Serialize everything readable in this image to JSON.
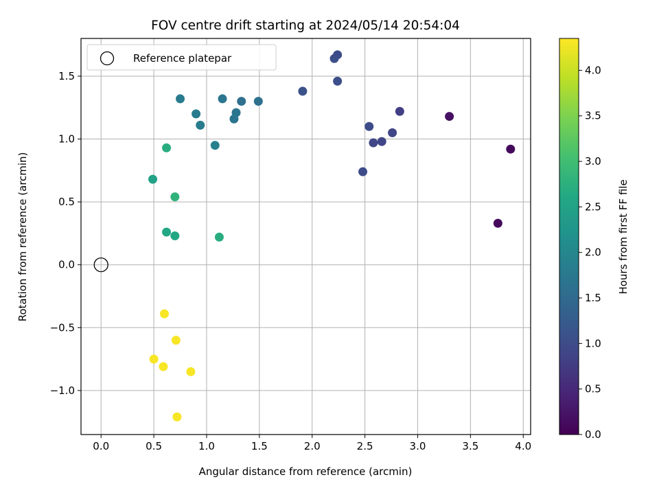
{
  "chart_data": {
    "type": "scatter",
    "title": "FOV centre drift starting at 2024/05/14 20:54:04",
    "xlabel": "Angular distance from reference (arcmin)",
    "ylabel": "Rotation from reference (arcmin)",
    "xlim": [
      -0.19,
      4.07
    ],
    "ylim": [
      -1.35,
      1.8
    ],
    "x_ticks": [
      0.0,
      0.5,
      1.0,
      1.5,
      2.0,
      2.5,
      3.0,
      3.5,
      4.0
    ],
    "y_ticks": [
      -1.0,
      -0.5,
      0.0,
      0.5,
      1.0,
      1.5
    ],
    "x_tick_labels": [
      "0.0",
      "0.5",
      "1.0",
      "1.5",
      "2.0",
      "2.5",
      "3.0",
      "3.5",
      "4.0"
    ],
    "y_tick_labels": [
      "−1.0",
      "−0.5",
      "0.0",
      "0.5",
      "1.0",
      "1.5"
    ],
    "grid": true,
    "legend": {
      "placement": "top-left",
      "entries": [
        "Reference platepar"
      ]
    },
    "reference_point": {
      "x": 0.0,
      "y": 0.0
    },
    "colorbar": {
      "label": "Hours from first FF file",
      "range": [
        0.0,
        4.35
      ],
      "ticks": [
        0.0,
        0.5,
        1.0,
        1.5,
        2.0,
        2.5,
        3.0,
        3.5,
        4.0
      ],
      "tick_labels": [
        "0.0",
        "0.5",
        "1.0",
        "1.5",
        "2.0",
        "2.5",
        "3.0",
        "3.5",
        "4.0"
      ],
      "colormap": "viridis"
    },
    "points": [
      {
        "x": 3.88,
        "y": 0.92,
        "c": 0.1
      },
      {
        "x": 3.3,
        "y": 1.18,
        "c": 0.2
      },
      {
        "x": 3.76,
        "y": 0.33,
        "c": 0.1
      },
      {
        "x": 2.83,
        "y": 1.22,
        "c": 0.8
      },
      {
        "x": 2.76,
        "y": 1.05,
        "c": 0.9
      },
      {
        "x": 2.66,
        "y": 0.98,
        "c": 0.9
      },
      {
        "x": 2.58,
        "y": 0.97,
        "c": 0.9
      },
      {
        "x": 2.54,
        "y": 1.1,
        "c": 1.0
      },
      {
        "x": 2.48,
        "y": 0.74,
        "c": 1.0
      },
      {
        "x": 2.24,
        "y": 1.67,
        "c": 1.0
      },
      {
        "x": 2.21,
        "y": 1.64,
        "c": 1.05
      },
      {
        "x": 2.24,
        "y": 1.46,
        "c": 1.05
      },
      {
        "x": 1.91,
        "y": 1.38,
        "c": 1.1
      },
      {
        "x": 1.49,
        "y": 1.3,
        "c": 1.6
      },
      {
        "x": 1.33,
        "y": 1.3,
        "c": 1.6
      },
      {
        "x": 1.15,
        "y": 1.32,
        "c": 1.7
      },
      {
        "x": 1.28,
        "y": 1.21,
        "c": 1.7
      },
      {
        "x": 1.26,
        "y": 1.16,
        "c": 1.7
      },
      {
        "x": 0.75,
        "y": 1.32,
        "c": 1.8
      },
      {
        "x": 0.9,
        "y": 1.2,
        "c": 1.8
      },
      {
        "x": 0.94,
        "y": 1.11,
        "c": 1.8
      },
      {
        "x": 1.08,
        "y": 0.95,
        "c": 1.9
      },
      {
        "x": 0.62,
        "y": 0.93,
        "c": 2.7
      },
      {
        "x": 0.49,
        "y": 0.68,
        "c": 2.5
      },
      {
        "x": 0.7,
        "y": 0.54,
        "c": 2.8
      },
      {
        "x": 0.62,
        "y": 0.26,
        "c": 2.6
      },
      {
        "x": 0.7,
        "y": 0.23,
        "c": 2.6
      },
      {
        "x": 1.12,
        "y": 0.22,
        "c": 2.7
      },
      {
        "x": 0.6,
        "y": -0.39,
        "c": 4.3
      },
      {
        "x": 0.71,
        "y": -0.6,
        "c": 4.3
      },
      {
        "x": 0.5,
        "y": -0.75,
        "c": 4.3
      },
      {
        "x": 0.59,
        "y": -0.81,
        "c": 4.3
      },
      {
        "x": 0.85,
        "y": -0.85,
        "c": 4.3
      },
      {
        "x": 0.72,
        "y": -1.21,
        "c": 4.3
      }
    ]
  }
}
